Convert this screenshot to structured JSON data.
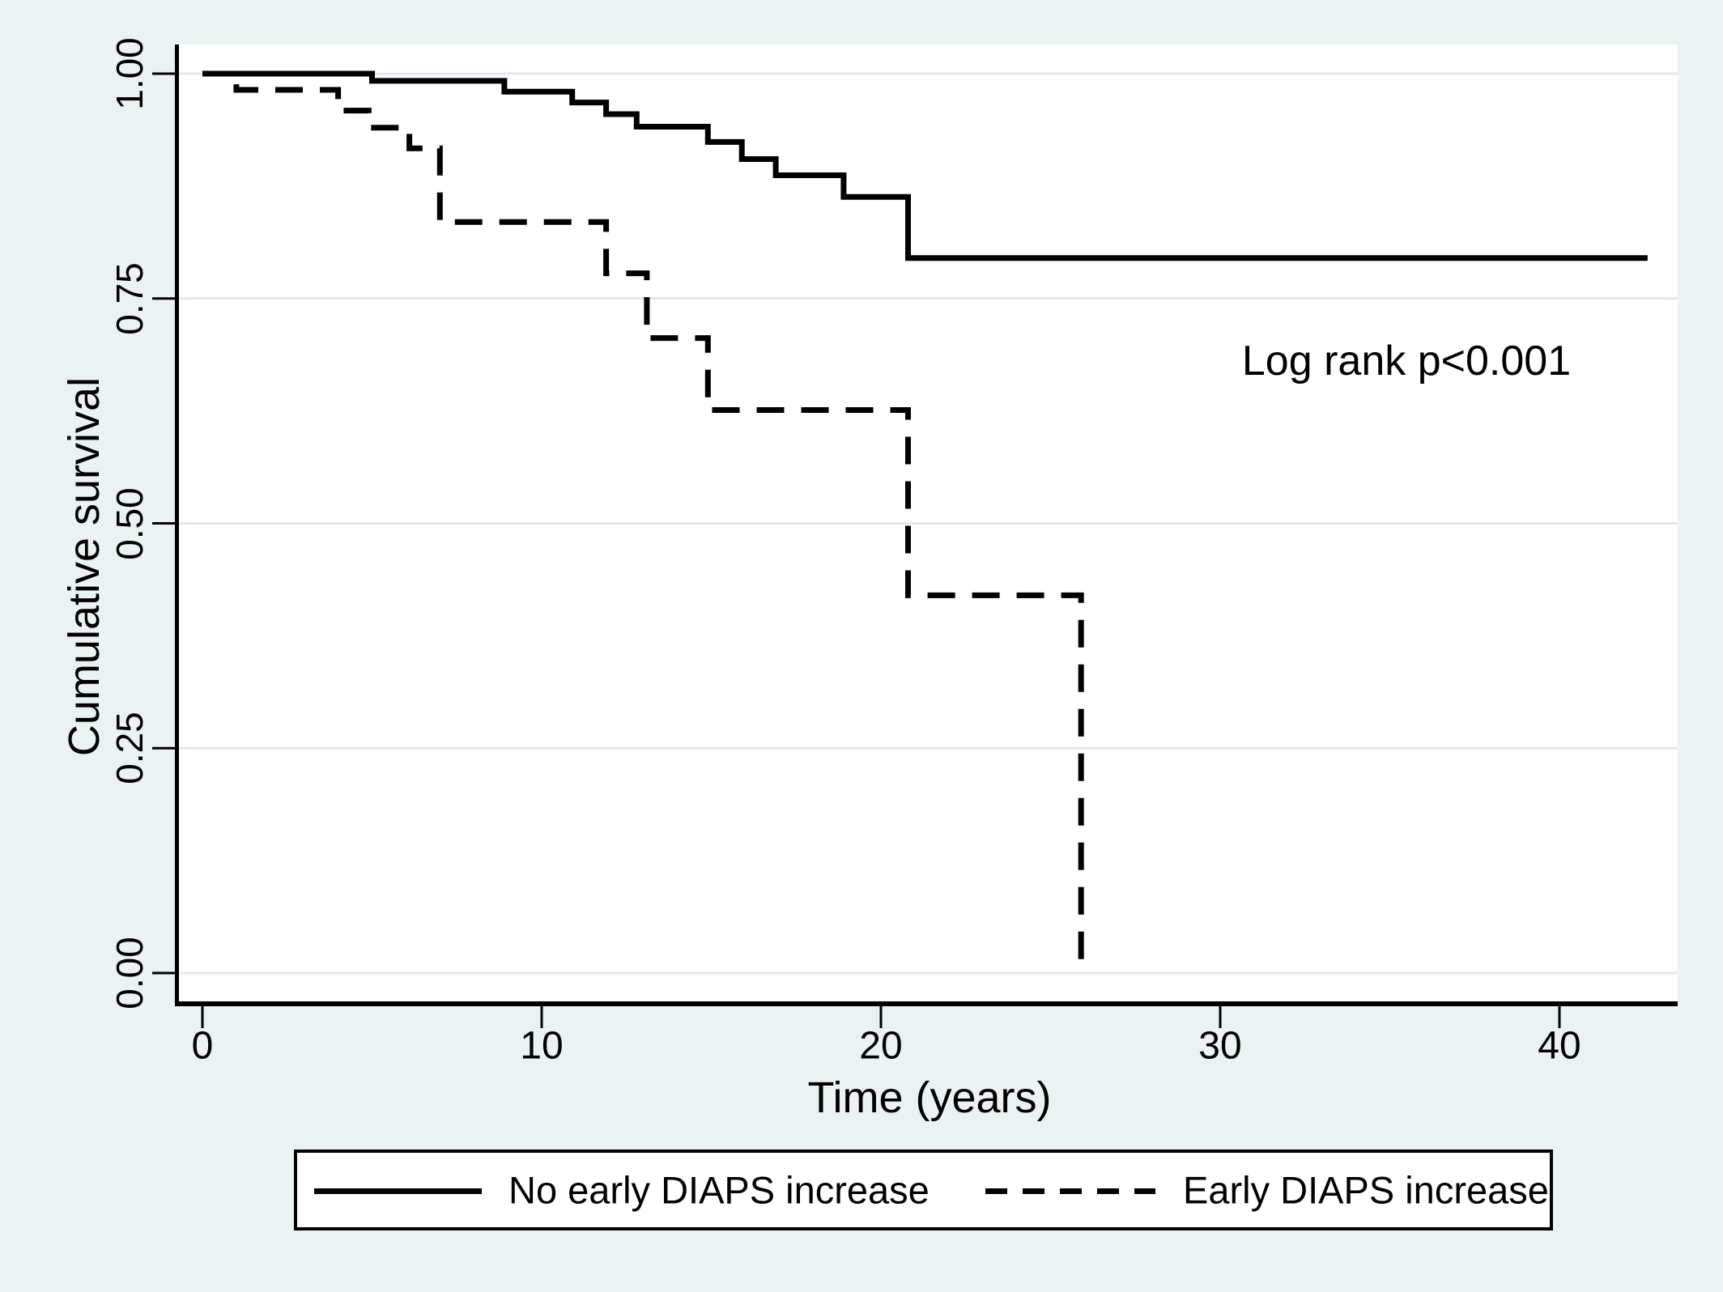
{
  "chart_data": {
    "type": "line",
    "subtype": "kaplan-meier-step-curves",
    "title": "",
    "xlabel": "Time (years)",
    "ylabel": "Cumulative survival",
    "annotation": "Log rank p<0.001",
    "xlim": [
      0,
      43.5
    ],
    "ylim": [
      0,
      1
    ],
    "grid": "horizontal",
    "legend_position": "bottom-box",
    "xticks": [
      {
        "t": 0,
        "label": "0"
      },
      {
        "t": 10,
        "label": "10"
      },
      {
        "t": 20,
        "label": "20"
      },
      {
        "t": 30,
        "label": "30"
      },
      {
        "t": 40,
        "label": "40"
      }
    ],
    "yticks": [
      {
        "v": 1.0,
        "label": "1.00"
      },
      {
        "v": 0.75,
        "label": "0.75"
      },
      {
        "v": 0.5,
        "label": "0.50"
      },
      {
        "v": 0.25,
        "label": "0.25"
      },
      {
        "v": 0.0,
        "label": "0.00"
      }
    ],
    "series": [
      {
        "name": "No early DIAPS increase",
        "style": "solid",
        "end_t": 42.6,
        "steps": [
          [
            0,
            1.0
          ],
          [
            5.0,
            0.992
          ],
          [
            8.9,
            0.98
          ],
          [
            10.9,
            0.968
          ],
          [
            11.9,
            0.955
          ],
          [
            12.8,
            0.941
          ],
          [
            14.9,
            0.924
          ],
          [
            15.9,
            0.905
          ],
          [
            16.9,
            0.887
          ],
          [
            18.9,
            0.863
          ],
          [
            20.8,
            0.795
          ]
        ]
      },
      {
        "name": "Early DIAPS increase",
        "style": "dashed",
        "end_t": 25.9,
        "steps": [
          [
            0,
            1.0
          ],
          [
            1.0,
            0.982
          ],
          [
            4.0,
            0.959
          ],
          [
            4.9,
            0.94
          ],
          [
            6.1,
            0.917
          ],
          [
            7.0,
            0.835
          ],
          [
            11.9,
            0.778
          ],
          [
            13.1,
            0.706
          ],
          [
            14.9,
            0.626
          ],
          [
            20.8,
            0.42
          ],
          [
            25.9,
            0.0
          ]
        ]
      }
    ],
    "colors": {
      "background": "#EAF2F3",
      "plot_background": "#FFFFFF",
      "grid": "#DFEAED",
      "line": "#000000",
      "text": "#000000"
    }
  }
}
